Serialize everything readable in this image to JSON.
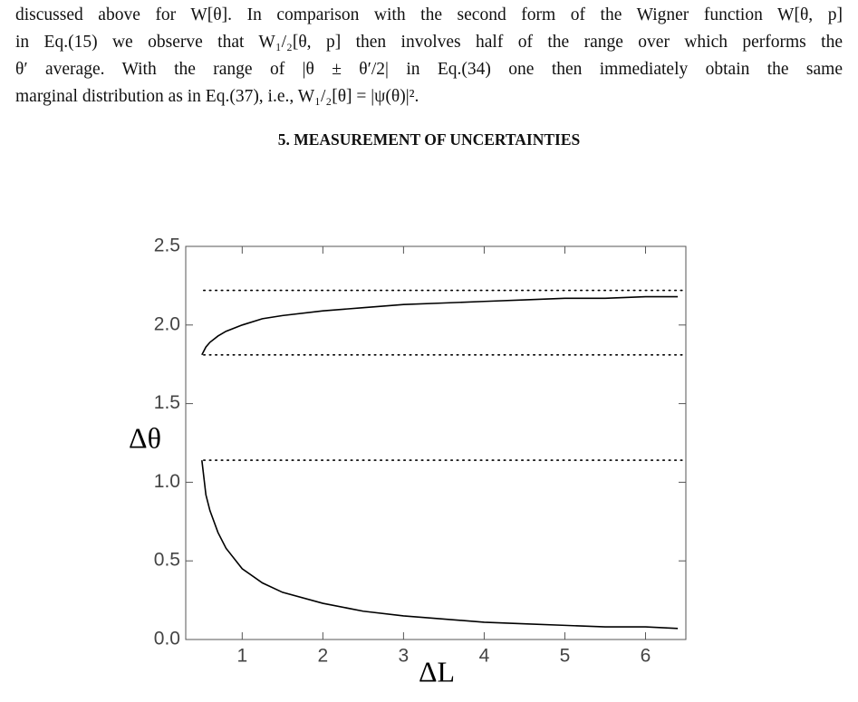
{
  "paragraph": {
    "lines": [
      "discussed above for W[θ]. In comparison with the second form of the Wigner function W[θ, p]",
      "in Eq.(15) we observe that W₁/₂[θ, p] then involves half of the range over which performs the",
      "θ′ average. With the range of |θ ± θ′/2| in Eq.(34) one then immediately obtain the same",
      "marginal distribution as in Eq.(37), i.e., W₁/₂[θ] = |ψ(θ)|²."
    ]
  },
  "section_heading": "5. MEASUREMENT OF UNCERTAINTIES",
  "chart_data": {
    "type": "line",
    "xlabel": "ΔL",
    "ylabel": "Δθ",
    "x": [
      0.5,
      0.55,
      0.6,
      0.7,
      0.8,
      1,
      1.25,
      1.5,
      2,
      2.5,
      3,
      3.5,
      4,
      4.5,
      5,
      5.5,
      6,
      6.4
    ],
    "series": [
      {
        "color": "#000000",
        "values": [
          1.81,
          1.86,
          1.89,
          1.93,
          1.96,
          2.0,
          2.04,
          2.06,
          2.09,
          2.11,
          2.13,
          2.14,
          2.15,
          2.16,
          2.17,
          2.17,
          2.18,
          2.18
        ]
      },
      {
        "color": "#000000",
        "values": [
          1.14,
          0.92,
          0.82,
          0.68,
          0.58,
          0.45,
          0.36,
          0.3,
          0.23,
          0.18,
          0.15,
          0.13,
          0.11,
          0.1,
          0.09,
          0.08,
          0.08,
          0.07
        ]
      }
    ],
    "hlines": {
      "values": [
        2.22,
        1.81,
        1.14
      ],
      "style": "dotted",
      "color": "#000000"
    },
    "xlim": [
      0.3,
      6.5
    ],
    "ylim": [
      0,
      2.5
    ],
    "xticks": [
      1,
      2,
      3,
      4,
      5,
      6
    ],
    "yticks": [
      {
        "value": 0,
        "label": "0.0"
      },
      0.5,
      {
        "value": 1,
        "label": "1.0"
      },
      1.5,
      {
        "value": 2,
        "label": "2.0"
      },
      2.5
    ]
  }
}
